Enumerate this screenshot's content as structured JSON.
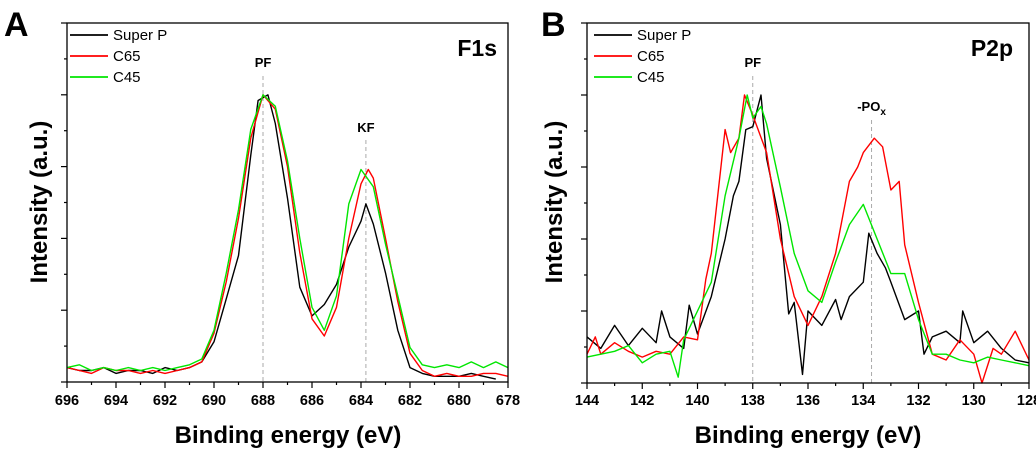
{
  "chart_data": [
    {
      "type": "line",
      "panel_label": "A",
      "title": "F1s",
      "xlabel": "Binding energy (eV)",
      "ylabel": "Intensity (a.u.)",
      "xlim": [
        696,
        678
      ],
      "x_reversed": true,
      "xticks": [
        "696",
        "694",
        "692",
        "690",
        "688",
        "686",
        "684",
        "682",
        "680",
        "678"
      ],
      "ylim": [
        0,
        1.25
      ],
      "y_tick_labels_shown": false,
      "grid": false,
      "legend_position": "top-left",
      "annotations": [
        {
          "text": "PF",
          "x": 688
        },
        {
          "text": "KF",
          "x": 683.8
        }
      ],
      "series": [
        {
          "name": "Super P",
          "color": "#000000",
          "points": [
            [
              696,
              0.05
            ],
            [
              695.5,
              0.04
            ],
            [
              695,
              0.04
            ],
            [
              694.5,
              0.05
            ],
            [
              694,
              0.03
            ],
            [
              693.5,
              0.04
            ],
            [
              693,
              0.04
            ],
            [
              692.5,
              0.03
            ],
            [
              692,
              0.05
            ],
            [
              691.5,
              0.04
            ],
            [
              691,
              0.05
            ],
            [
              690.5,
              0.07
            ],
            [
              690,
              0.14
            ],
            [
              689.5,
              0.29
            ],
            [
              689,
              0.44
            ],
            [
              688.5,
              0.79
            ],
            [
              688.2,
              0.98
            ],
            [
              687.8,
              1.0
            ],
            [
              687.5,
              0.9
            ],
            [
              687,
              0.64
            ],
            [
              686.5,
              0.33
            ],
            [
              686,
              0.23
            ],
            [
              685.5,
              0.27
            ],
            [
              685,
              0.34
            ],
            [
              684.5,
              0.47
            ],
            [
              684,
              0.56
            ],
            [
              683.8,
              0.62
            ],
            [
              683.5,
              0.55
            ],
            [
              683,
              0.38
            ],
            [
              682.5,
              0.18
            ],
            [
              682,
              0.05
            ],
            [
              681.5,
              0.03
            ],
            [
              681,
              0.02
            ],
            [
              680.5,
              0.02
            ],
            [
              680,
              0.02
            ],
            [
              679.5,
              0.03
            ],
            [
              679,
              0.02
            ],
            [
              678.5,
              0.01
            ]
          ]
        },
        {
          "name": "C65",
          "color": "#ff0000",
          "points": [
            [
              696,
              0.05
            ],
            [
              695.5,
              0.04
            ],
            [
              695,
              0.03
            ],
            [
              694.5,
              0.05
            ],
            [
              694,
              0.04
            ],
            [
              693.5,
              0.04
            ],
            [
              693,
              0.03
            ],
            [
              692.5,
              0.04
            ],
            [
              692,
              0.03
            ],
            [
              691.5,
              0.04
            ],
            [
              691,
              0.05
            ],
            [
              690.5,
              0.07
            ],
            [
              690,
              0.17
            ],
            [
              689.5,
              0.35
            ],
            [
              689,
              0.57
            ],
            [
              688.5,
              0.85
            ],
            [
              688,
              1.0
            ],
            [
              687.5,
              0.95
            ],
            [
              687,
              0.75
            ],
            [
              686.5,
              0.45
            ],
            [
              686,
              0.22
            ],
            [
              685.5,
              0.16
            ],
            [
              685,
              0.26
            ],
            [
              684.5,
              0.5
            ],
            [
              684,
              0.69
            ],
            [
              683.7,
              0.74
            ],
            [
              683.5,
              0.71
            ],
            [
              683,
              0.5
            ],
            [
              682.5,
              0.28
            ],
            [
              682,
              0.1
            ],
            [
              681.5,
              0.04
            ],
            [
              681,
              0.02
            ],
            [
              680.5,
              0.03
            ],
            [
              680,
              0.02
            ],
            [
              679.5,
              0.02
            ],
            [
              679,
              0.03
            ],
            [
              678.5,
              0.03
            ],
            [
              678,
              0.02
            ]
          ]
        },
        {
          "name": "C45",
          "color": "#00e600",
          "points": [
            [
              696,
              0.05
            ],
            [
              695.5,
              0.06
            ],
            [
              695,
              0.04
            ],
            [
              694.5,
              0.05
            ],
            [
              694,
              0.04
            ],
            [
              693.5,
              0.05
            ],
            [
              693,
              0.04
            ],
            [
              692.5,
              0.05
            ],
            [
              692,
              0.04
            ],
            [
              691.5,
              0.05
            ],
            [
              691,
              0.06
            ],
            [
              690.5,
              0.08
            ],
            [
              690,
              0.18
            ],
            [
              689.5,
              0.38
            ],
            [
              689,
              0.6
            ],
            [
              688.5,
              0.88
            ],
            [
              688,
              1.0
            ],
            [
              687.5,
              0.96
            ],
            [
              687,
              0.77
            ],
            [
              686.5,
              0.5
            ],
            [
              686,
              0.26
            ],
            [
              685.5,
              0.18
            ],
            [
              685,
              0.3
            ],
            [
              684.5,
              0.62
            ],
            [
              684,
              0.74
            ],
            [
              683.5,
              0.68
            ],
            [
              683,
              0.48
            ],
            [
              682.5,
              0.3
            ],
            [
              682,
              0.12
            ],
            [
              681.5,
              0.06
            ],
            [
              681,
              0.05
            ],
            [
              680.5,
              0.06
            ],
            [
              680,
              0.05
            ],
            [
              679.5,
              0.07
            ],
            [
              679,
              0.05
            ],
            [
              678.5,
              0.07
            ],
            [
              678,
              0.05
            ]
          ]
        }
      ]
    },
    {
      "type": "line",
      "panel_label": "B",
      "title": "P2p",
      "xlabel": "Binding energy (eV)",
      "ylabel": "Intensity (a.u.)",
      "xlim": [
        144,
        128
      ],
      "x_reversed": true,
      "xticks": [
        "144",
        "142",
        "140",
        "138",
        "136",
        "134",
        "132",
        "130",
        "128"
      ],
      "ylim": [
        0,
        1.25
      ],
      "y_tick_labels_shown": false,
      "grid": false,
      "legend_position": "top-left",
      "annotations": [
        {
          "text": "PF",
          "x": 138
        },
        {
          "text": "-PO",
          "subscript": "x",
          "x": 133.7
        }
      ],
      "series": [
        {
          "name": "Super P",
          "color": "#000000",
          "points": [
            [
              144,
              0.16
            ],
            [
              143.5,
              0.12
            ],
            [
              143,
              0.2
            ],
            [
              142.5,
              0.13
            ],
            [
              142,
              0.19
            ],
            [
              141.5,
              0.14
            ],
            [
              141.3,
              0.25
            ],
            [
              141,
              0.16
            ],
            [
              140.5,
              0.12
            ],
            [
              140.3,
              0.27
            ],
            [
              140,
              0.17
            ],
            [
              139.5,
              0.3
            ],
            [
              139,
              0.5
            ],
            [
              138.7,
              0.65
            ],
            [
              138.5,
              0.7
            ],
            [
              138.25,
              0.88
            ],
            [
              138,
              0.89
            ],
            [
              137.7,
              1.0
            ],
            [
              137.5,
              0.78
            ],
            [
              137,
              0.55
            ],
            [
              136.7,
              0.24
            ],
            [
              136.5,
              0.28
            ],
            [
              136.2,
              0.03
            ],
            [
              136,
              0.25
            ],
            [
              135.5,
              0.2
            ],
            [
              135,
              0.29
            ],
            [
              134.8,
              0.22
            ],
            [
              134.5,
              0.3
            ],
            [
              134,
              0.35
            ],
            [
              133.8,
              0.52
            ],
            [
              133.5,
              0.45
            ],
            [
              133.2,
              0.4
            ],
            [
              133,
              0.35
            ],
            [
              132.5,
              0.22
            ],
            [
              132,
              0.25
            ],
            [
              131.8,
              0.1
            ],
            [
              131.5,
              0.16
            ],
            [
              131,
              0.18
            ],
            [
              130.5,
              0.14
            ],
            [
              130.4,
              0.25
            ],
            [
              130,
              0.14
            ],
            [
              129.5,
              0.18
            ],
            [
              129,
              0.12
            ],
            [
              128.5,
              0.08
            ],
            [
              128,
              0.07
            ]
          ]
        },
        {
          "name": "C65",
          "color": "#ff0000",
          "points": [
            [
              144,
              0.1
            ],
            [
              143.7,
              0.16
            ],
            [
              143.5,
              0.1
            ],
            [
              143,
              0.14
            ],
            [
              142.5,
              0.11
            ],
            [
              142,
              0.09
            ],
            [
              141.5,
              0.11
            ],
            [
              141,
              0.1
            ],
            [
              140.5,
              0.16
            ],
            [
              140,
              0.15
            ],
            [
              139.7,
              0.36
            ],
            [
              139.5,
              0.45
            ],
            [
              139,
              0.88
            ],
            [
              138.8,
              0.8
            ],
            [
              138.5,
              0.85
            ],
            [
              138.3,
              1.0
            ],
            [
              138,
              0.93
            ],
            [
              137.5,
              0.8
            ],
            [
              137,
              0.5
            ],
            [
              136.7,
              0.38
            ],
            [
              136.5,
              0.3
            ],
            [
              136,
              0.2
            ],
            [
              135.5,
              0.3
            ],
            [
              135,
              0.45
            ],
            [
              134.5,
              0.7
            ],
            [
              134.2,
              0.75
            ],
            [
              134,
              0.8
            ],
            [
              133.6,
              0.85
            ],
            [
              133.3,
              0.82
            ],
            [
              133,
              0.67
            ],
            [
              132.7,
              0.7
            ],
            [
              132.5,
              0.48
            ],
            [
              132,
              0.28
            ],
            [
              131.5,
              0.1
            ],
            [
              131,
              0.08
            ],
            [
              130.5,
              0.15
            ],
            [
              130,
              0.1
            ],
            [
              129.7,
              0.0
            ],
            [
              129.3,
              0.12
            ],
            [
              129,
              0.1
            ],
            [
              128.5,
              0.18
            ],
            [
              128,
              0.08
            ]
          ]
        },
        {
          "name": "C45",
          "color": "#00e600",
          "points": [
            [
              144,
              0.09
            ],
            [
              143.5,
              0.1
            ],
            [
              143,
              0.11
            ],
            [
              142.5,
              0.13
            ],
            [
              142,
              0.07
            ],
            [
              141.5,
              0.1
            ],
            [
              141,
              0.11
            ],
            [
              140.7,
              0.02
            ],
            [
              140.5,
              0.15
            ],
            [
              140,
              0.25
            ],
            [
              139.5,
              0.35
            ],
            [
              139,
              0.65
            ],
            [
              138.5,
              0.85
            ],
            [
              138.2,
              1.0
            ],
            [
              138,
              0.92
            ],
            [
              137.7,
              0.96
            ],
            [
              137.5,
              0.9
            ],
            [
              137,
              0.68
            ],
            [
              136.5,
              0.45
            ],
            [
              136,
              0.32
            ],
            [
              135.5,
              0.28
            ],
            [
              135,
              0.42
            ],
            [
              134.5,
              0.55
            ],
            [
              134,
              0.62
            ],
            [
              133.5,
              0.5
            ],
            [
              133,
              0.38
            ],
            [
              132.5,
              0.38
            ],
            [
              132,
              0.22
            ],
            [
              131.5,
              0.1
            ],
            [
              131,
              0.1
            ],
            [
              130.5,
              0.08
            ],
            [
              130,
              0.07
            ],
            [
              129.5,
              0.09
            ],
            [
              129,
              0.08
            ],
            [
              128.5,
              0.07
            ],
            [
              128,
              0.06
            ]
          ]
        }
      ]
    }
  ]
}
